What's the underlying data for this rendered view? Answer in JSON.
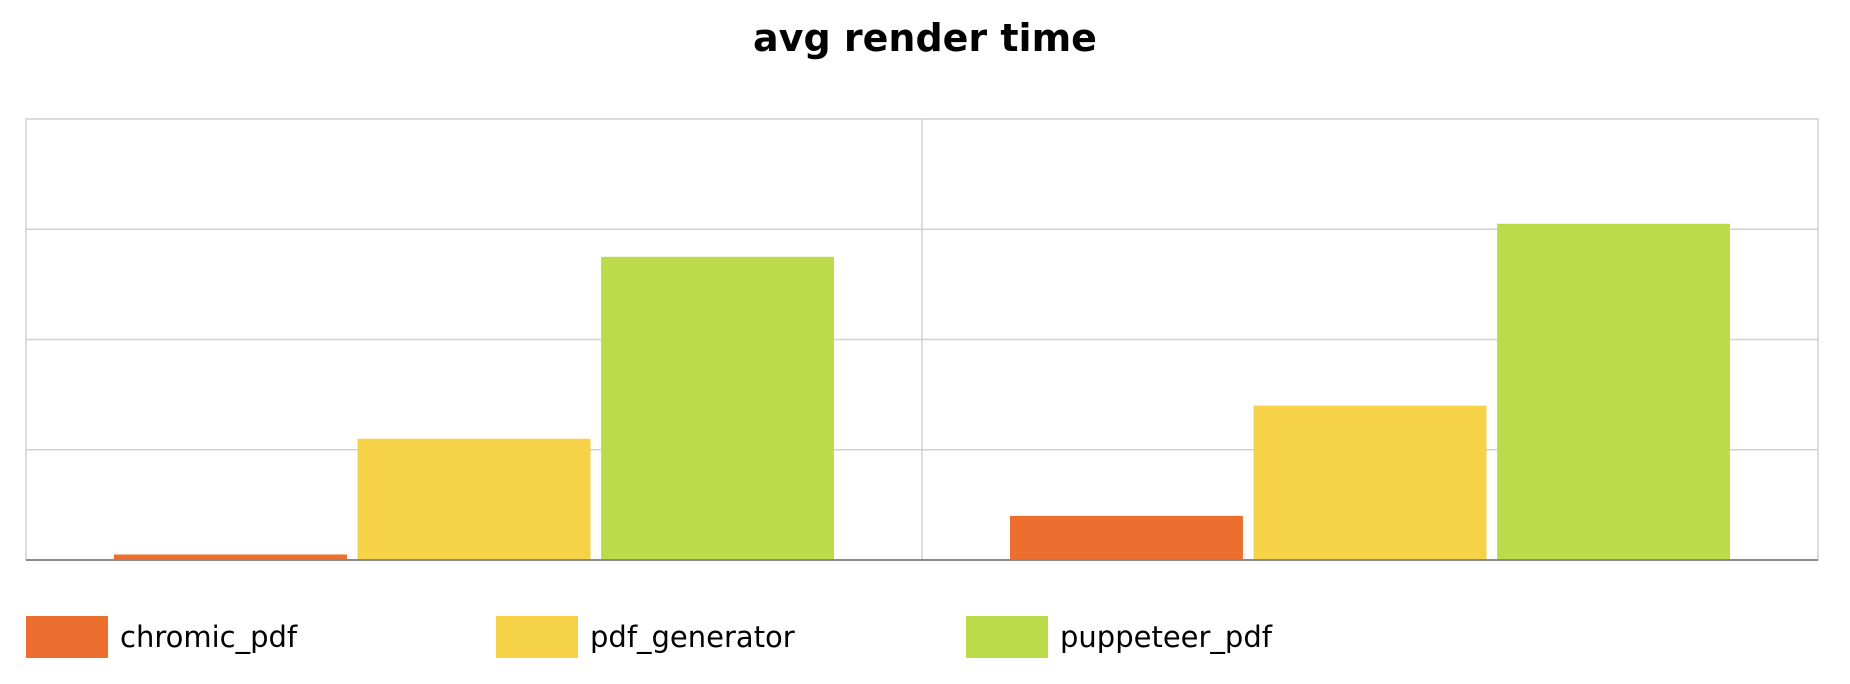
{
  "chart_data": {
    "type": "bar",
    "title": "avg render time",
    "xlabel": "",
    "ylabel": "",
    "categories": [
      "",
      ""
    ],
    "series": [
      {
        "name": "chromic_pdf",
        "color": "#ec6f2f",
        "values": [
          0.05,
          0.4
        ]
      },
      {
        "name": "pdf_generator",
        "color": "#f5d248",
        "values": [
          1.1,
          1.4
        ]
      },
      {
        "name": "puppeteer_pdf",
        "color": "#bcdb4a",
        "values": [
          2.75,
          3.05
        ]
      }
    ],
    "ylim": [
      0,
      4
    ],
    "y_ticks": [
      0,
      1,
      2,
      3,
      4
    ],
    "grid": true,
    "legend_position": "bottom"
  }
}
